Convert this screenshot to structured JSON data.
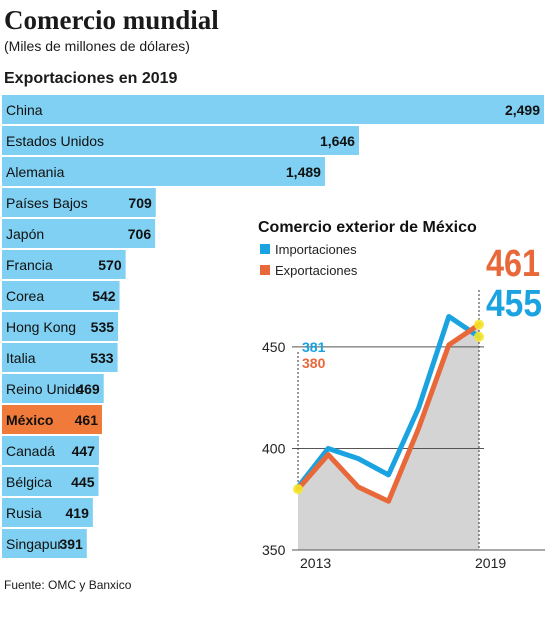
{
  "title": "Comercio mundial",
  "subtitle": "(Miles de millones de dólares)",
  "section_title": "Exportaciones en 2019",
  "source": "Fuente: OMC y Banxico",
  "colors": {
    "bar": "#7fd0f2",
    "highlight": "#f07a3a",
    "importaciones": "#1aa3e0",
    "exportaciones": "#e8683a",
    "area": "#d4d4d4",
    "marker": "#f5e52a"
  },
  "chart_data": [
    {
      "type": "bar",
      "orientation": "horizontal",
      "title": "Exportaciones en 2019",
      "categories": [
        "China",
        "Estados Unidos",
        "Alemania",
        "Países Bajos",
        "Japón",
        "Francia",
        "Corea",
        "Hong Kong",
        "Italia",
        "Reino Unido",
        "México",
        "Canadá",
        "Bélgica",
        "Rusia",
        "Singapur"
      ],
      "values": [
        2499,
        1646,
        1489,
        709,
        706,
        570,
        542,
        535,
        533,
        469,
        461,
        447,
        445,
        419,
        391
      ],
      "value_labels": [
        "2,499",
        "1,646",
        "1,489",
        "709",
        "706",
        "570",
        "542",
        "535",
        "533",
        "469",
        "461",
        "447",
        "445",
        "419",
        "391"
      ],
      "highlight": "México"
    },
    {
      "type": "line",
      "title": "Comercio exterior de México",
      "x": [
        2013,
        2014,
        2015,
        2016,
        2017,
        2018,
        2019
      ],
      "xticks": [
        "2013",
        "2019"
      ],
      "ylim": [
        350,
        480
      ],
      "yticks": [
        "350",
        "400",
        "450"
      ],
      "legend_position": "top-left",
      "series": [
        {
          "name": "Importaciones",
          "values": [
            381,
            400,
            395,
            387,
            420,
            465,
            455
          ]
        },
        {
          "name": "Exportaciones",
          "values": [
            380,
            397,
            381,
            374,
            410,
            451,
            461
          ]
        }
      ],
      "annotations": {
        "start_imports": "381",
        "start_exports": "380",
        "end_exports": "461",
        "end_imports": "455"
      }
    }
  ]
}
